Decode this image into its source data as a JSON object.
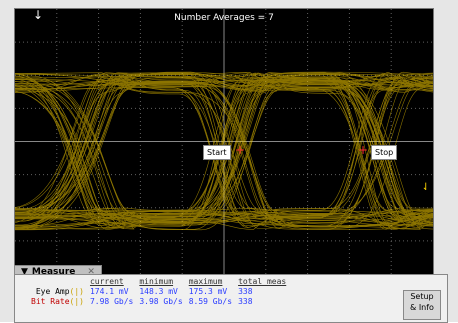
{
  "scope": {
    "title_label": "Number Averages =",
    "averages": "7",
    "start_marker": "Start",
    "stop_marker": "Stop"
  },
  "measure": {
    "tab_label": "Measure",
    "columns": [
      "current",
      "minimum",
      "maximum",
      "total meas"
    ],
    "rows": [
      {
        "label": "Eye Amp",
        "current": "174.1 mV",
        "minimum": "148.3 mV",
        "maximum": "175.3 mV",
        "total": "338"
      },
      {
        "label": "Bit Rate",
        "current": "7.98 Gb/s",
        "minimum": "3.98 Gb/s",
        "maximum": "8.59 Gb/s",
        "total": "338"
      }
    ],
    "setup_button": "Setup\n& Info"
  },
  "colors": {
    "trace": "#ffd400",
    "background": "#000000",
    "grid": "#606060",
    "value_text": "#2a3cff"
  }
}
